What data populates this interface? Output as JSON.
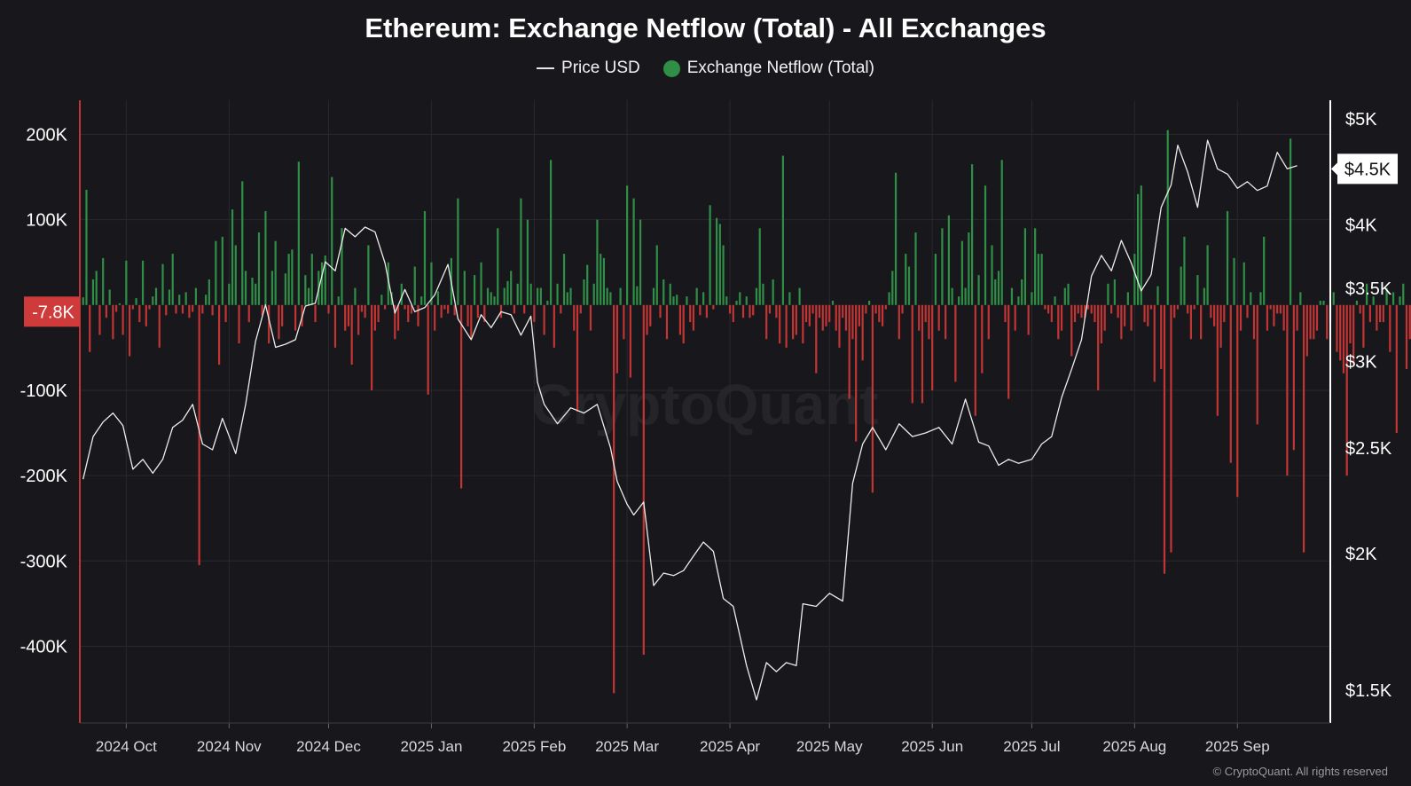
{
  "chart_data": {
    "type": "bar",
    "title": "Ethereum: Exchange Netflow (Total) - All Exchanges",
    "colors": {
      "background": "#18181c",
      "grid": "#28282e",
      "positive": "#2f8f47",
      "negative": "#c23535",
      "price_line": "#ececec",
      "axis": "#ffffff",
      "current_badge": "#cf3a3a"
    },
    "legend": {
      "placement": "top-center",
      "items": [
        {
          "name": "Price USD",
          "icon": "line-icon"
        },
        {
          "name": "Exchange Netflow (Total)",
          "icon": "dot-icon",
          "color": "#2f8f47"
        }
      ]
    },
    "x_axis": {
      "start": "2024-09-17",
      "end": "2025-09-29",
      "ticks": [
        {
          "label": "2024 Oct",
          "date": "2024-10-01"
        },
        {
          "label": "2024 Nov",
          "date": "2024-11-01"
        },
        {
          "label": "2024 Dec",
          "date": "2024-12-01"
        },
        {
          "label": "2025 Jan",
          "date": "2025-01-01"
        },
        {
          "label": "2025 Feb",
          "date": "2025-02-01"
        },
        {
          "label": "2025 Mar",
          "date": "2025-03-01"
        },
        {
          "label": "2025 Apr",
          "date": "2025-04-01"
        },
        {
          "label": "2025 May",
          "date": "2025-05-01"
        },
        {
          "label": "2025 Jun",
          "date": "2025-06-01"
        },
        {
          "label": "2025 Jul",
          "date": "2025-07-01"
        },
        {
          "label": "2025 Aug",
          "date": "2025-08-01"
        },
        {
          "label": "2025 Sep",
          "date": "2025-09-01"
        }
      ]
    },
    "y_left": {
      "label": "",
      "ylim": [
        -490000,
        240000
      ],
      "ticks": [
        {
          "label": "200K",
          "value": 200000
        },
        {
          "label": "100K",
          "value": 100000
        },
        {
          "label": "-100K",
          "value": -100000
        },
        {
          "label": "-200K",
          "value": -200000
        },
        {
          "label": "-300K",
          "value": -300000
        },
        {
          "label": "-400K",
          "value": -400000
        }
      ],
      "current": {
        "label": "-7.8K",
        "value": -7800
      }
    },
    "y_right": {
      "label": "",
      "scale": "log",
      "ylim": [
        1400,
        5200
      ],
      "ticks": [
        {
          "label": "$5K",
          "value": 5000
        },
        {
          "label": "$4K",
          "value": 4000
        },
        {
          "label": "$3.5K",
          "value": 3500
        },
        {
          "label": "$3K",
          "value": 3000
        },
        {
          "label": "$2.5K",
          "value": 2500
        },
        {
          "label": "$2K",
          "value": 2000
        },
        {
          "label": "$1.5K",
          "value": 1500
        }
      ],
      "current": {
        "label": "$4.5K",
        "value": 4500
      }
    },
    "series": [
      {
        "name": "Price USD",
        "type": "line",
        "points": [
          [
            "2024-09-18",
            2340
          ],
          [
            "2024-09-21",
            2560
          ],
          [
            "2024-09-24",
            2640
          ],
          [
            "2024-09-27",
            2690
          ],
          [
            "2024-09-30",
            2620
          ],
          [
            "2024-10-03",
            2390
          ],
          [
            "2024-10-06",
            2440
          ],
          [
            "2024-10-09",
            2370
          ],
          [
            "2024-10-12",
            2440
          ],
          [
            "2024-10-15",
            2610
          ],
          [
            "2024-10-18",
            2650
          ],
          [
            "2024-10-21",
            2740
          ],
          [
            "2024-10-24",
            2520
          ],
          [
            "2024-10-27",
            2490
          ],
          [
            "2024-10-30",
            2660
          ],
          [
            "2024-11-03",
            2470
          ],
          [
            "2024-11-06",
            2740
          ],
          [
            "2024-11-09",
            3130
          ],
          [
            "2024-11-12",
            3380
          ],
          [
            "2024-11-15",
            3090
          ],
          [
            "2024-11-18",
            3110
          ],
          [
            "2024-11-21",
            3140
          ],
          [
            "2024-11-24",
            3370
          ],
          [
            "2024-11-27",
            3390
          ],
          [
            "2024-11-30",
            3700
          ],
          [
            "2024-12-03",
            3630
          ],
          [
            "2024-12-06",
            3970
          ],
          [
            "2024-12-09",
            3900
          ],
          [
            "2024-12-12",
            3980
          ],
          [
            "2024-12-15",
            3940
          ],
          [
            "2024-12-18",
            3690
          ],
          [
            "2024-12-21",
            3320
          ],
          [
            "2024-12-24",
            3490
          ],
          [
            "2024-12-27",
            3330
          ],
          [
            "2024-12-30",
            3360
          ],
          [
            "2025-01-02",
            3450
          ],
          [
            "2025-01-06",
            3680
          ],
          [
            "2025-01-09",
            3280
          ],
          [
            "2025-01-13",
            3140
          ],
          [
            "2025-01-16",
            3310
          ],
          [
            "2025-01-19",
            3220
          ],
          [
            "2025-01-22",
            3330
          ],
          [
            "2025-01-25",
            3310
          ],
          [
            "2025-01-28",
            3170
          ],
          [
            "2025-01-31",
            3300
          ],
          [
            "2025-02-02",
            2870
          ],
          [
            "2025-02-04",
            2740
          ],
          [
            "2025-02-08",
            2630
          ],
          [
            "2025-02-12",
            2720
          ],
          [
            "2025-02-16",
            2690
          ],
          [
            "2025-02-20",
            2740
          ],
          [
            "2025-02-24",
            2500
          ],
          [
            "2025-02-26",
            2330
          ],
          [
            "2025-03-01",
            2220
          ],
          [
            "2025-03-03",
            2170
          ],
          [
            "2025-03-06",
            2230
          ],
          [
            "2025-03-09",
            1870
          ],
          [
            "2025-03-12",
            1920
          ],
          [
            "2025-03-15",
            1910
          ],
          [
            "2025-03-18",
            1930
          ],
          [
            "2025-03-21",
            1990
          ],
          [
            "2025-03-24",
            2050
          ],
          [
            "2025-03-27",
            2010
          ],
          [
            "2025-03-30",
            1820
          ],
          [
            "2025-04-02",
            1790
          ],
          [
            "2025-04-06",
            1580
          ],
          [
            "2025-04-09",
            1470
          ],
          [
            "2025-04-12",
            1590
          ],
          [
            "2025-04-15",
            1560
          ],
          [
            "2025-04-18",
            1590
          ],
          [
            "2025-04-21",
            1580
          ],
          [
            "2025-04-23",
            1800
          ],
          [
            "2025-04-27",
            1790
          ],
          [
            "2025-05-01",
            1840
          ],
          [
            "2025-05-05",
            1810
          ],
          [
            "2025-05-08",
            2320
          ],
          [
            "2025-05-11",
            2520
          ],
          [
            "2025-05-14",
            2610
          ],
          [
            "2025-05-18",
            2490
          ],
          [
            "2025-05-22",
            2630
          ],
          [
            "2025-05-26",
            2560
          ],
          [
            "2025-05-30",
            2580
          ],
          [
            "2025-06-03",
            2610
          ],
          [
            "2025-06-07",
            2520
          ],
          [
            "2025-06-11",
            2770
          ],
          [
            "2025-06-15",
            2530
          ],
          [
            "2025-06-18",
            2510
          ],
          [
            "2025-06-21",
            2410
          ],
          [
            "2025-06-24",
            2440
          ],
          [
            "2025-06-27",
            2420
          ],
          [
            "2025-07-01",
            2440
          ],
          [
            "2025-07-04",
            2520
          ],
          [
            "2025-07-07",
            2560
          ],
          [
            "2025-07-10",
            2780
          ],
          [
            "2025-07-13",
            2950
          ],
          [
            "2025-07-16",
            3140
          ],
          [
            "2025-07-19",
            3590
          ],
          [
            "2025-07-22",
            3750
          ],
          [
            "2025-07-25",
            3630
          ],
          [
            "2025-07-28",
            3870
          ],
          [
            "2025-07-31",
            3690
          ],
          [
            "2025-08-03",
            3480
          ],
          [
            "2025-08-06",
            3600
          ],
          [
            "2025-08-09",
            4150
          ],
          [
            "2025-08-12",
            4350
          ],
          [
            "2025-08-14",
            4730
          ],
          [
            "2025-08-17",
            4470
          ],
          [
            "2025-08-20",
            4150
          ],
          [
            "2025-08-23",
            4780
          ],
          [
            "2025-08-26",
            4500
          ],
          [
            "2025-08-29",
            4450
          ],
          [
            "2025-09-01",
            4320
          ],
          [
            "2025-09-04",
            4380
          ],
          [
            "2025-09-07",
            4300
          ],
          [
            "2025-09-10",
            4340
          ],
          [
            "2025-09-13",
            4660
          ],
          [
            "2025-09-16",
            4500
          ],
          [
            "2025-09-19",
            4530
          ]
        ]
      },
      {
        "name": "Exchange Netflow (Total)",
        "type": "bar",
        "values": [
          9000,
          135000,
          -55000,
          30000,
          40000,
          -35000,
          55000,
          -15000,
          18000,
          -40000,
          -8000,
          2000,
          -35000,
          52000,
          -60000,
          -5000,
          8000,
          -20000,
          52000,
          -25000,
          -5000,
          10000,
          20000,
          -50000,
          48000,
          -12000,
          18000,
          60000,
          -10000,
          12000,
          -10000,
          15000,
          -15000,
          -8000,
          20000,
          -305000,
          -10000,
          12000,
          30000,
          -12000,
          75000,
          -70000,
          80000,
          -20000,
          25000,
          112000,
          70000,
          -45000,
          145000,
          40000,
          -20000,
          32000,
          25000,
          85000,
          -12000,
          110000,
          -45000,
          40000,
          75000,
          -40000,
          -25000,
          37000,
          60000,
          65000,
          -30000,
          168000,
          -25000,
          35000,
          20000,
          60000,
          -20000,
          40000,
          50000,
          58000,
          -10000,
          150000,
          -50000,
          10000,
          90000,
          -30000,
          -25000,
          -70000,
          20000,
          -35000,
          -8000,
          -15000,
          70000,
          -100000,
          -30000,
          -20000,
          12000,
          -5000,
          50000,
          15000,
          -40000,
          -30000,
          25000,
          -5000,
          -20000,
          -10000,
          45000,
          -25000,
          10000,
          110000,
          -105000,
          50000,
          -30000,
          16000,
          -15000,
          -5000,
          -10000,
          55000,
          -12000,
          125000,
          -215000,
          40000,
          -25000,
          -40000,
          35000,
          -15000,
          50000,
          -20000,
          20000,
          15000,
          10000,
          90000,
          -15000,
          20000,
          28000,
          40000,
          -10000,
          25000,
          125000,
          -10000,
          100000,
          25000,
          -20000,
          20000,
          20000,
          -35000,
          5000,
          170000,
          -50000,
          25000,
          -10000,
          60000,
          15000,
          20000,
          -30000,
          -125000,
          -10000,
          30000,
          47000,
          -30000,
          25000,
          100000,
          60000,
          55000,
          20000,
          15000,
          -455000,
          -80000,
          20000,
          -40000,
          140000,
          -85000,
          125000,
          22000,
          100000,
          -410000,
          -35000,
          -25000,
          20000,
          70000,
          -15000,
          30000,
          -40000,
          25000,
          10000,
          12000,
          -35000,
          -45000,
          10000,
          -20000,
          -30000,
          20000,
          -12000,
          15000,
          -15000,
          117000,
          -5000,
          102000,
          95000,
          70000,
          10000,
          -10000,
          -20000,
          5000,
          15000,
          -15000,
          10000,
          -15000,
          -12000,
          20000,
          90000,
          25000,
          -40000,
          -10000,
          30000,
          -15000,
          -45000,
          175000,
          -50000,
          15000,
          -40000,
          -35000,
          20000,
          -45000,
          -20000,
          -25000,
          -10000,
          -80000,
          -15000,
          -30000,
          -25000,
          -20000,
          5000,
          -30000,
          -50000,
          -15000,
          -30000,
          -110000,
          -40000,
          -160000,
          -25000,
          -65000,
          -10000,
          5000,
          -220000,
          -10000,
          -20000,
          -25000,
          -5000,
          15000,
          40000,
          155000,
          -40000,
          -10000,
          60000,
          45000,
          -115000,
          85000,
          -30000,
          -115000,
          -20000,
          -40000,
          -100000,
          60000,
          -30000,
          90000,
          -40000,
          105000,
          20000,
          -90000,
          10000,
          75000,
          20000,
          85000,
          165000,
          -130000,
          35000,
          -80000,
          140000,
          -40000,
          70000,
          30000,
          40000,
          170000,
          -20000,
          -110000,
          20000,
          -30000,
          10000,
          30000,
          90000,
          -35000,
          15000,
          90000,
          60000,
          60000,
          -5000,
          -10000,
          -20000,
          10000,
          -40000,
          -30000,
          20000,
          25000,
          -60000,
          -20000,
          -10000,
          -15000,
          -15000,
          -5000,
          -10000,
          -20000,
          -100000,
          -45000,
          -30000,
          25000,
          -10000,
          30000,
          -15000,
          -40000,
          -25000,
          15000,
          -30000,
          60000,
          130000,
          140000,
          -20000,
          -25000,
          -5000,
          -90000,
          22000,
          -75000,
          -315000,
          205000,
          -290000,
          -15000,
          -5000,
          45000,
          80000,
          -10000,
          -40000,
          -5000,
          35000,
          -40000,
          20000,
          70000,
          -15000,
          -25000,
          -130000,
          -50000,
          -20000,
          110000,
          -185000,
          55000,
          -225000,
          -30000,
          50000,
          -15000,
          15000,
          -40000,
          -140000,
          15000,
          80000,
          -30000,
          -5000,
          -25000,
          -10000,
          -10000,
          -30000,
          -200000,
          195000,
          -170000,
          -30000,
          15000,
          -290000,
          -60000,
          -40000,
          -40000,
          -30000,
          5000,
          5000,
          -40000,
          -20000,
          15000,
          -55000,
          -65000,
          -80000,
          -200000,
          -45000,
          -70000,
          5000,
          -10000,
          -50000,
          25000,
          -20000,
          10000,
          -30000,
          -20000,
          -20000,
          20000,
          -55000,
          15000,
          -150000,
          10000,
          25000,
          -75000,
          -40000,
          -5000,
          -80000,
          25000,
          -25000,
          -70000,
          35000,
          40000,
          -10000,
          -20000,
          -40000,
          -140000,
          35000,
          -10000,
          -15000,
          -5000,
          30000,
          5000,
          -20000,
          -7800
        ]
      }
    ],
    "watermark": "CryptoQuant"
  },
  "footer": {
    "copyright": "© CryptoQuant. All rights reserved"
  }
}
